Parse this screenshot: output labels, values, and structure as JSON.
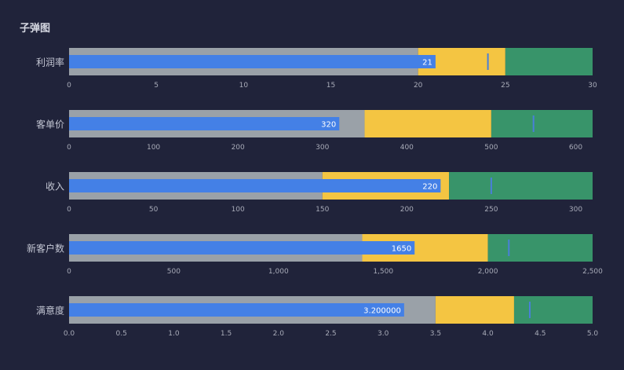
{
  "chart_data": {
    "type": "bullet",
    "title": "子弹图",
    "colors": {
      "background": "#20233a",
      "range_1": "#9aa1a8",
      "range_2": "#f4c542",
      "range_3": "#38946a",
      "measure": "#4480e6",
      "target": "#4a7fd9",
      "label_text": "#c4c7d4",
      "tick_text": "#a8abb8",
      "value_text": "#ffffff"
    },
    "bullets": [
      {
        "name": "利润率",
        "measure": 21,
        "measure_label": "21",
        "target": 24,
        "ranges": [
          20,
          25,
          30
        ],
        "axis": {
          "min": 0,
          "max": 30,
          "ticks": [
            0,
            5,
            10,
            15,
            20,
            25,
            30
          ],
          "tick_labels": [
            "0",
            "5",
            "10",
            "15",
            "20",
            "25",
            "30"
          ]
        }
      },
      {
        "name": "客单价",
        "measure": 320,
        "measure_label": "320",
        "target": 550,
        "ranges": [
          350,
          500,
          620
        ],
        "axis": {
          "min": 0,
          "max": 620,
          "ticks": [
            0,
            100,
            200,
            300,
            400,
            500,
            600
          ],
          "tick_labels": [
            "0",
            "100",
            "200",
            "300",
            "400",
            "500",
            "600"
          ]
        }
      },
      {
        "name": "收入",
        "measure": 220,
        "measure_label": "220",
        "target": 250,
        "ranges": [
          150,
          225,
          310
        ],
        "axis": {
          "min": 0,
          "max": 310,
          "ticks": [
            0,
            50,
            100,
            150,
            200,
            250,
            300
          ],
          "tick_labels": [
            "0",
            "50",
            "100",
            "150",
            "200",
            "250",
            "300"
          ]
        }
      },
      {
        "name": "新客户数",
        "measure": 1650,
        "measure_label": "1650",
        "target": 2100,
        "ranges": [
          1400,
          2000,
          2500
        ],
        "axis": {
          "min": 0,
          "max": 2500,
          "ticks": [
            0,
            500,
            1000,
            1500,
            2000,
            2500
          ],
          "tick_labels": [
            "0",
            "500",
            "1,000",
            "1,500",
            "2,000",
            "2,500"
          ]
        }
      },
      {
        "name": "满意度",
        "measure": 3.2,
        "measure_label": "3.200000",
        "target": 4.4,
        "ranges": [
          3.5,
          4.25,
          5
        ],
        "axis": {
          "min": 0,
          "max": 5,
          "ticks": [
            0,
            0.5,
            1,
            1.5,
            2,
            2.5,
            3,
            3.5,
            4,
            4.5,
            5
          ],
          "tick_labels": [
            "0.0",
            "0.5",
            "1.0",
            "1.5",
            "2.0",
            "2.5",
            "3.0",
            "3.5",
            "4.0",
            "4.5",
            "5.0"
          ]
        }
      }
    ]
  }
}
